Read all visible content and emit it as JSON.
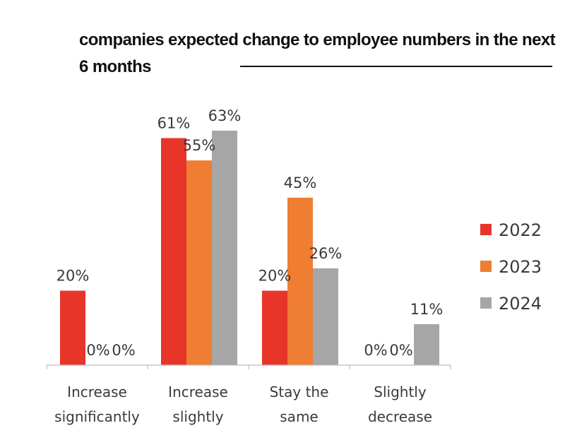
{
  "title": "companies expected change to employee numbers in the next 6 months",
  "chart_data": {
    "type": "bar",
    "title": "companies expected change to employee numbers in the next 6 months",
    "categories": [
      [
        "Increase",
        "significantly"
      ],
      [
        "Increase",
        "slightly"
      ],
      [
        "Stay the",
        "same"
      ],
      [
        "Slightly",
        "decrease"
      ]
    ],
    "series": [
      {
        "name": "2022",
        "color": "#e8352a",
        "values": [
          20,
          61,
          20,
          0
        ]
      },
      {
        "name": "2023",
        "color": "#ef7d32",
        "values": [
          0,
          55,
          45,
          0
        ]
      },
      {
        "name": "2024",
        "color": "#a6a6a6",
        "values": [
          0,
          63,
          26,
          11
        ]
      }
    ],
    "value_suffix": "%",
    "ylim": [
      0,
      70
    ],
    "grid": false,
    "legend": "right"
  }
}
